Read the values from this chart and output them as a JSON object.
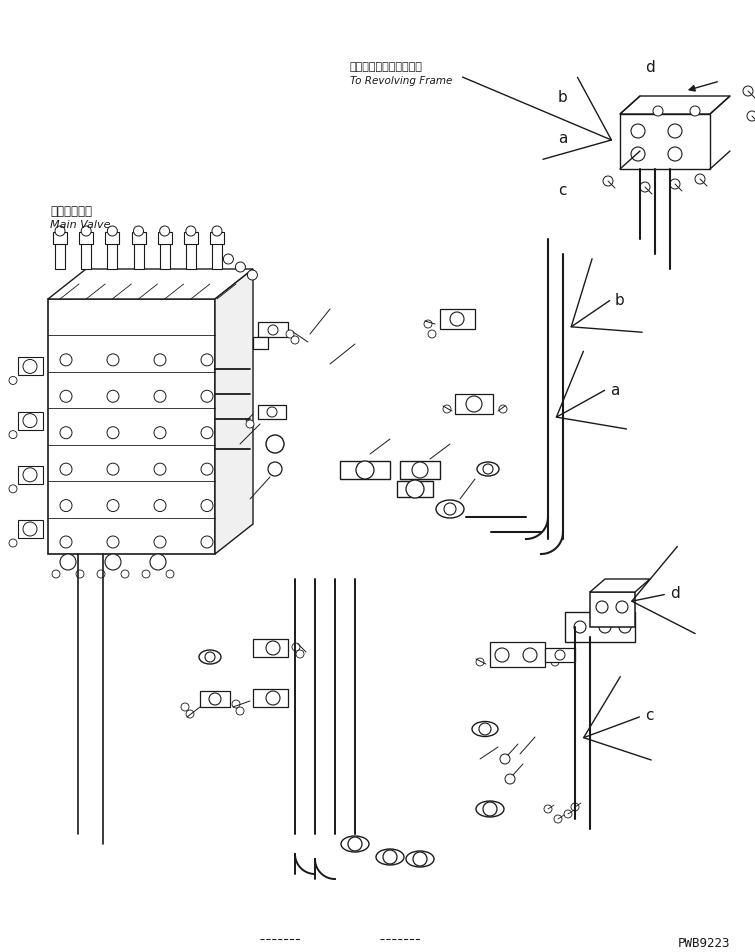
{
  "bg_color": "#ffffff",
  "line_color": "#1a1a1a",
  "watermark": "PWB9223",
  "label_a": "a",
  "label_b": "b",
  "label_c": "c",
  "label_d": "d",
  "japanese_text1": "メインバルブ",
  "english_text1": "Main Valve",
  "japanese_text2": "レボルビングフレームヘ",
  "english_text2": "To Revolving Frame",
  "font_size_label": 11,
  "font_size_annot": 7.5,
  "font_size_watermark": 9
}
